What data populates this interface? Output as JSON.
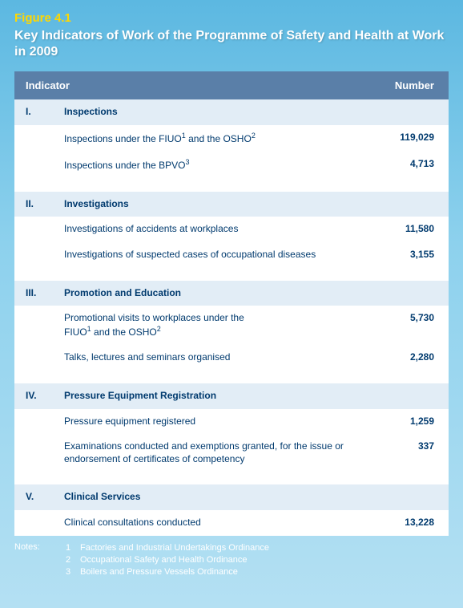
{
  "figure_label": "Figure 4.1",
  "figure_title": "Key Indicators of Work of the Programme of Safety and Health at Work  in 2009",
  "header": {
    "indicator": "Indicator",
    "number": "Number"
  },
  "sections": {
    "s1": {
      "roman": "I.",
      "title": "Inspections"
    },
    "s2": {
      "roman": "II.",
      "title": "Investigations"
    },
    "s3": {
      "roman": "III.",
      "title": "Promotion and Education"
    },
    "s4": {
      "roman": "IV.",
      "title": "Pressure Equipment Registration"
    },
    "s5": {
      "roman": "V.",
      "title": "Clinical Services"
    }
  },
  "rows": {
    "r1a_pre": "Inspections under the FIUO",
    "r1a_sup1": "1",
    "r1a_mid": " and the OSHO",
    "r1a_sup2": "2",
    "r1a_val": "119,029",
    "r1b_pre": "Inspections under the BPVO",
    "r1b_sup": "3",
    "r1b_val": "4,713",
    "r2a": "Investigations of accidents at workplaces",
    "r2a_val": "11,580",
    "r2b": "Investigations of suspected cases of occupational diseases",
    "r2b_val": "3,155",
    "r3a_l1": "Promotional visits to workplaces under the",
    "r3a_pre": "FIUO",
    "r3a_sup1": "1",
    "r3a_mid": " and the OSHO",
    "r3a_sup2": "2",
    "r3a_val": "5,730",
    "r3b": "Talks, lectures and seminars organised",
    "r3b_val": "2,280",
    "r4a": "Pressure equipment registered",
    "r4a_val": "1,259",
    "r4b": "Examinations conducted and exemptions granted, for the issue or endorsement of certificates of competency",
    "r4b_val": "337",
    "r5a": "Clinical consultations conducted",
    "r5a_val": "13,228"
  },
  "notes_label": "Notes:",
  "notes": {
    "n1n": "1",
    "n1": "Factories and Industrial Undertakings Ordinance",
    "n2n": "2",
    "n2": "Occupational Safety and Health Ordinance",
    "n3n": "3",
    "n3": "Boilers and Pressure Vessels Ordinance"
  },
  "colors": {
    "header_bg": "#5a7fa8",
    "section_bg": "#e2edf6",
    "text": "#003a6e",
    "fig_label": "#ffd700",
    "page_bg_top": "#5cb8e1",
    "page_bg_bottom": "#b4e0f3"
  }
}
